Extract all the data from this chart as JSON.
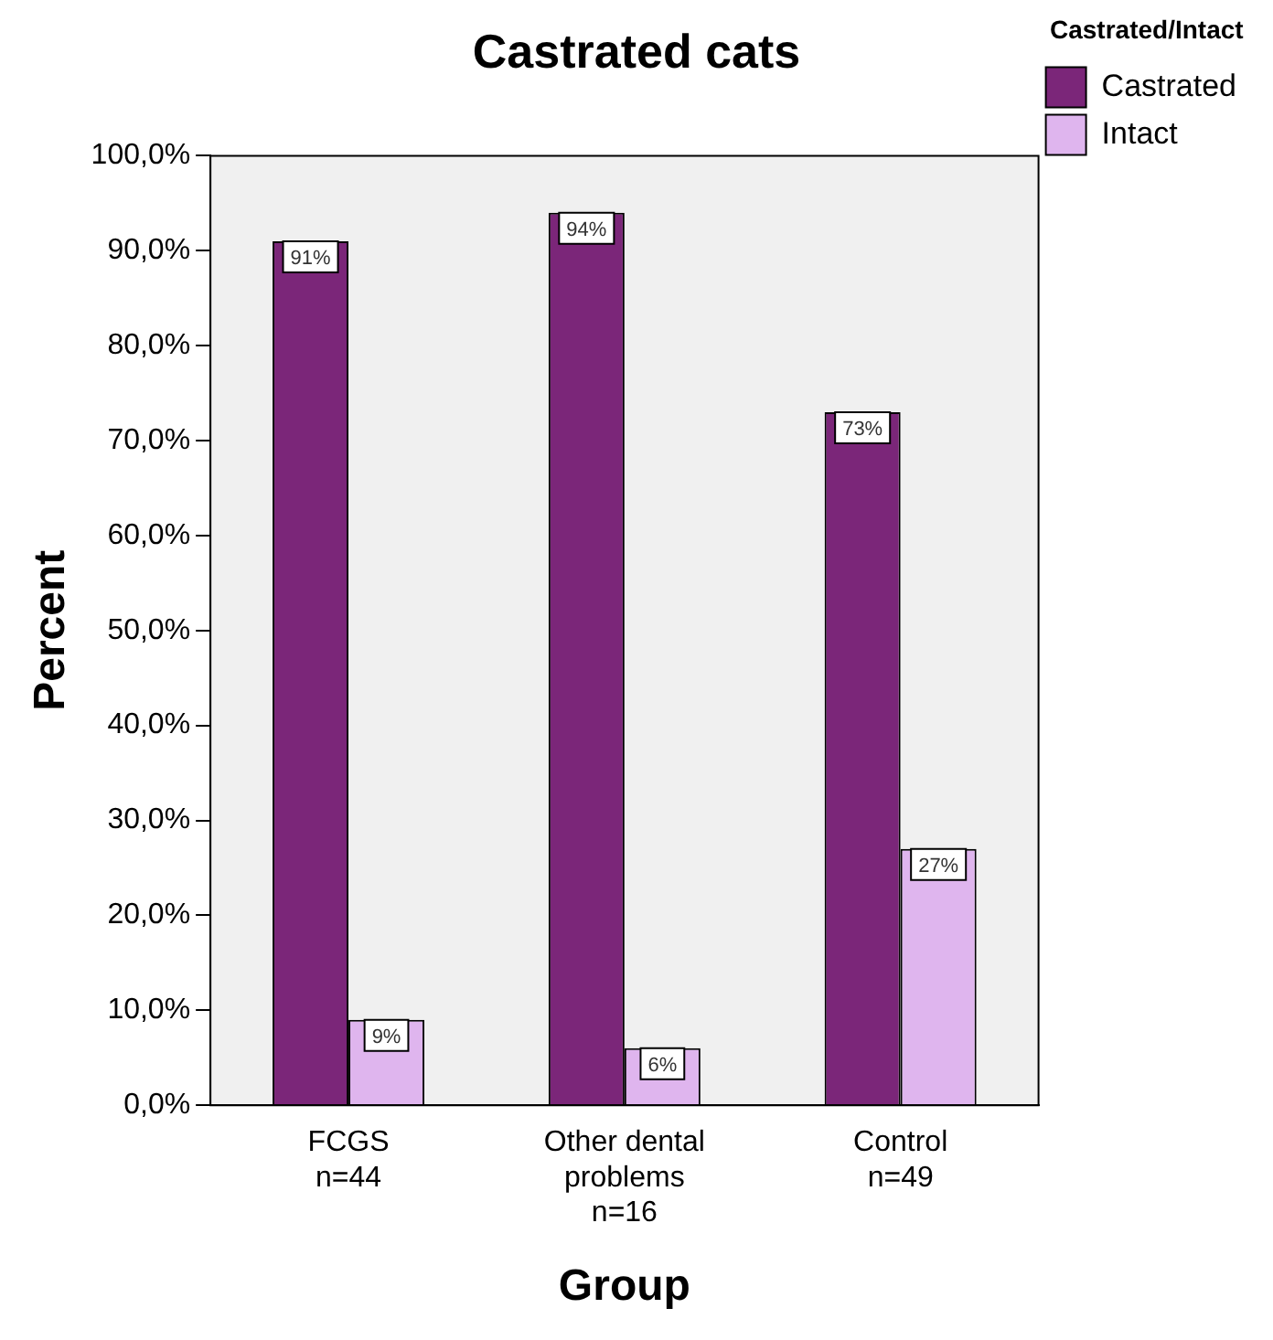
{
  "chart_data": {
    "type": "bar",
    "title": "Castrated cats",
    "xlabel": "Group",
    "ylabel": "Percent",
    "legend_title": "Castrated/Intact",
    "legend": "top right",
    "grid": false,
    "categories": [
      "FCGS\nn=44",
      "Other dental\nproblems\nn=16",
      "Control\nn=49"
    ],
    "series": [
      {
        "name": "Castrated",
        "color": "#7b2679",
        "values": [
          91,
          94,
          73
        ],
        "value_labels": [
          "91%",
          "94%",
          "73%"
        ]
      },
      {
        "name": "Intact",
        "color": "#dfb5ee",
        "values": [
          9,
          6,
          27
        ],
        "value_labels": [
          "9%",
          "6%",
          "27%"
        ]
      }
    ],
    "ylim": [
      0,
      100
    ],
    "yticks": [
      {
        "value": 0,
        "label": "0,0%"
      },
      {
        "value": 10,
        "label": "10,0%"
      },
      {
        "value": 20,
        "label": "20,0%"
      },
      {
        "value": 30,
        "label": "30,0%"
      },
      {
        "value": 40,
        "label": "40,0%"
      },
      {
        "value": 50,
        "label": "50,0%"
      },
      {
        "value": 60,
        "label": "60,0%"
      },
      {
        "value": 70,
        "label": "70,0%"
      },
      {
        "value": 80,
        "label": "80,0%"
      },
      {
        "value": 90,
        "label": "90,0%"
      },
      {
        "value": 100,
        "label": "100,0%"
      }
    ]
  }
}
